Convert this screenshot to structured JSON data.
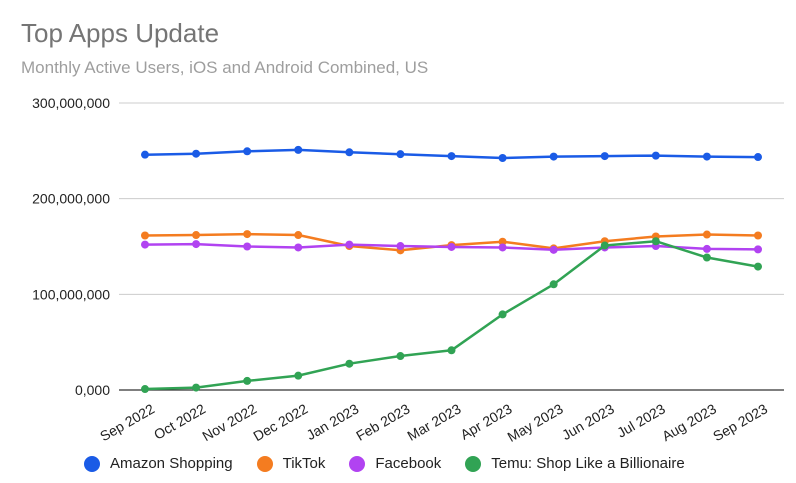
{
  "chart_data": {
    "type": "line",
    "title": "Top Apps Update",
    "subtitle": "Monthly Active Users, iOS and Android Combined, US",
    "xlabel": "",
    "ylabel": "",
    "ylim": [
      0,
      300000000
    ],
    "yticks": [
      0,
      100000000,
      200000000,
      300000000
    ],
    "ytick_labels": [
      "0,000",
      "100,000,000",
      "200,000,000",
      "300,000,000"
    ],
    "grid": true,
    "legend_position": "bottom",
    "categories": [
      "Sep 2022",
      "Oct 2022",
      "Nov 2022",
      "Dec 2022",
      "Jan 2023",
      "Feb 2023",
      "Mar 2023",
      "Apr 2023",
      "May 2023",
      "Jun 2023",
      "Jul 2023",
      "Aug 2023",
      "Sep 2023"
    ],
    "series": [
      {
        "name": "Amazon Shopping",
        "color": "#1a5be6",
        "values": [
          246000000,
          247000000,
          249500000,
          251000000,
          248500000,
          246500000,
          244500000,
          242500000,
          244000000,
          244500000,
          245000000,
          244000000,
          243500000
        ]
      },
      {
        "name": "TikTok",
        "color": "#f47c20",
        "values": [
          161500000,
          162000000,
          163000000,
          162000000,
          150500000,
          146000000,
          151500000,
          155000000,
          148000000,
          155500000,
          160500000,
          162500000,
          161500000
        ]
      },
      {
        "name": "Facebook",
        "color": "#b143f1",
        "values": [
          152000000,
          152500000,
          150000000,
          149000000,
          152000000,
          150500000,
          149500000,
          149000000,
          146500000,
          149000000,
          150500000,
          147500000,
          147000000
        ]
      },
      {
        "name": "Temu: Shop Like a Billionaire",
        "color": "#31a354",
        "values": [
          1000000,
          2500000,
          9500000,
          15000000,
          27500000,
          35500000,
          41500000,
          79000000,
          110500000,
          151000000,
          155500000,
          138500000,
          129000000
        ]
      }
    ]
  }
}
